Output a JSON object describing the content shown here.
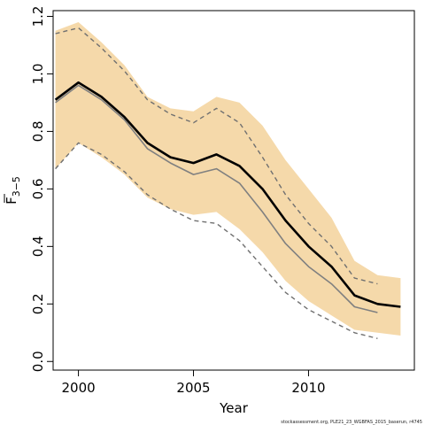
{
  "chart_data": {
    "type": "line",
    "xlabel": "Year",
    "ylabel_main": "F",
    "ylabel_sub": "3−5",
    "xlim": [
      1998.9,
      2014.6
    ],
    "ylim": [
      -0.03,
      1.22
    ],
    "x_ticks": [
      2000,
      2005,
      2010
    ],
    "x_tick_labels": [
      "2000",
      "2005",
      "2010"
    ],
    "y_ticks": [
      0.0,
      0.2,
      0.4,
      0.6,
      0.8,
      1.0,
      1.2
    ],
    "y_tick_labels": [
      "0.0",
      "0.2",
      "0.4",
      "0.6",
      "0.8",
      "1.0",
      "1.2"
    ],
    "grid": false,
    "colors": {
      "band": "#f5d9aa",
      "main": "#000000",
      "previous": "#808080",
      "previous_ci": "#707070"
    },
    "band": {
      "x": [
        1999,
        2000,
        2001,
        2002,
        2003,
        2004,
        2005,
        2006,
        2007,
        2008,
        2009,
        2010,
        2011,
        2012,
        2013,
        2014
      ],
      "upper": [
        1.15,
        1.18,
        1.11,
        1.03,
        0.92,
        0.88,
        0.87,
        0.92,
        0.9,
        0.82,
        0.7,
        0.6,
        0.5,
        0.35,
        0.3,
        0.29
      ],
      "lower": [
        0.67,
        0.76,
        0.71,
        0.65,
        0.57,
        0.53,
        0.51,
        0.52,
        0.46,
        0.38,
        0.28,
        0.21,
        0.16,
        0.11,
        0.1,
        0.09
      ]
    },
    "series": [
      {
        "style": "solid-bold",
        "x": [
          1999,
          2000,
          2001,
          2002,
          2003,
          2004,
          2005,
          2006,
          2007,
          2008,
          2009,
          2010,
          2011,
          2012,
          2013,
          2014
        ],
        "y": [
          0.91,
          0.97,
          0.92,
          0.85,
          0.76,
          0.71,
          0.69,
          0.72,
          0.68,
          0.6,
          0.49,
          0.4,
          0.33,
          0.23,
          0.2,
          0.19
        ]
      },
      {
        "style": "solid-thin",
        "x": [
          1999,
          2000,
          2001,
          2002,
          2003,
          2004,
          2005,
          2006,
          2007,
          2008,
          2009,
          2010,
          2011,
          2012,
          2013
        ],
        "y": [
          0.9,
          0.96,
          0.91,
          0.84,
          0.74,
          0.69,
          0.65,
          0.67,
          0.62,
          0.52,
          0.41,
          0.33,
          0.27,
          0.19,
          0.17
        ]
      },
      {
        "style": "dashed",
        "x": [
          1999,
          2000,
          2001,
          2002,
          2003,
          2004,
          2005,
          2006,
          2007,
          2008,
          2009,
          2010,
          2011,
          2012,
          2013
        ],
        "y": [
          1.14,
          1.16,
          1.09,
          1.01,
          0.91,
          0.86,
          0.83,
          0.88,
          0.83,
          0.71,
          0.58,
          0.48,
          0.4,
          0.29,
          0.27
        ]
      },
      {
        "style": "dashed",
        "x": [
          1999,
          2000,
          2001,
          2002,
          2003,
          2004,
          2005,
          2006,
          2007,
          2008,
          2009,
          2010,
          2011,
          2012,
          2013
        ],
        "y": [
          0.67,
          0.76,
          0.72,
          0.66,
          0.58,
          0.53,
          0.49,
          0.48,
          0.42,
          0.33,
          0.24,
          0.18,
          0.14,
          0.1,
          0.08
        ]
      }
    ]
  },
  "footer": {
    "text": "stockassessment.org, PLE21_23_WGBFAS_2015_baserun, r4745"
  }
}
